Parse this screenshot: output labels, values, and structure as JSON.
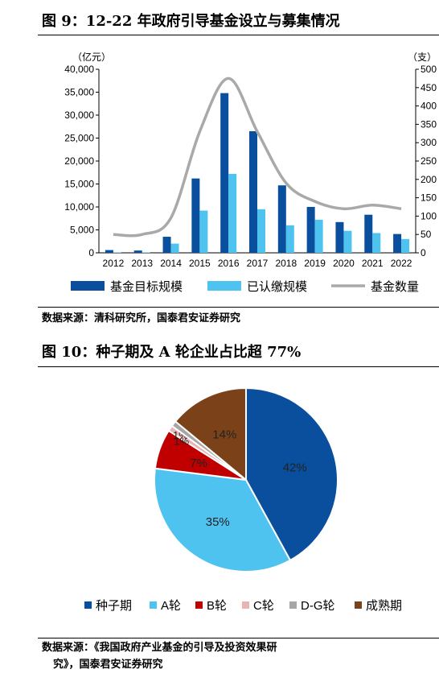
{
  "fig1": {
    "title": "图 9：12-22 年政府引导基金设立与募集情况",
    "source": "数据来源：清科研究所，国泰君安证券研究"
  },
  "fig2": {
    "title": "图 10：种子期及 A 轮企业占比超 77%",
    "source_line1": "数据来源：《我国政府产业基金的引导及投资效果研",
    "source_line2": "究》，国泰君安证券研究"
  },
  "chart_data": [
    {
      "type": "bar",
      "categories": [
        "2012",
        "2013",
        "2014",
        "2015",
        "2016",
        "2017",
        "2018",
        "2019",
        "2020",
        "2021",
        "2022"
      ],
      "ylabel_left": "（亿元）",
      "ylabel_right": "（支）",
      "ylim_left": [
        0,
        40000
      ],
      "ylim_right": [
        0,
        500
      ],
      "yticks_left": [
        "0",
        "5,000",
        "10,000",
        "15,000",
        "20,000",
        "25,000",
        "30,000",
        "35,000",
        "40,000"
      ],
      "yticks_right": [
        "0",
        "50",
        "100",
        "150",
        "200",
        "250",
        "300",
        "350",
        "400",
        "450",
        "500"
      ],
      "series": [
        {
          "name": "基金目标规模",
          "axis": "left",
          "kind": "bar",
          "color": "#0a4f9e",
          "values": [
            600,
            500,
            3500,
            16200,
            34800,
            26500,
            14700,
            10000,
            6700,
            8300,
            4100
          ]
        },
        {
          "name": "已认缴规模",
          "axis": "left",
          "kind": "bar",
          "color": "#4fc3f0",
          "values": [
            100,
            100,
            2000,
            9200,
            17200,
            9500,
            6000,
            7200,
            4800,
            4300,
            3000
          ]
        },
        {
          "name": "基金数量",
          "axis": "right",
          "kind": "line",
          "color": "#a9a9a9",
          "values": [
            50,
            50,
            95,
            330,
            475,
            330,
            190,
            140,
            120,
            130,
            120
          ]
        }
      ],
      "grid": false,
      "legend": "bottom"
    },
    {
      "type": "pie",
      "categories": [
        "种子期",
        "A轮",
        "B轮",
        "C轮",
        "D-G轮",
        "成熟期"
      ],
      "values": [
        42,
        35,
        7,
        1,
        1,
        14
      ],
      "labels": [
        "42%",
        "35%",
        "7%",
        "1%",
        "1%",
        "14%"
      ],
      "colors": [
        "#0a4f9e",
        "#4fc3f0",
        "#c00000",
        "#e8b4b4",
        "#a6a6a6",
        "#7b4219"
      ],
      "legend": "bottom"
    }
  ]
}
